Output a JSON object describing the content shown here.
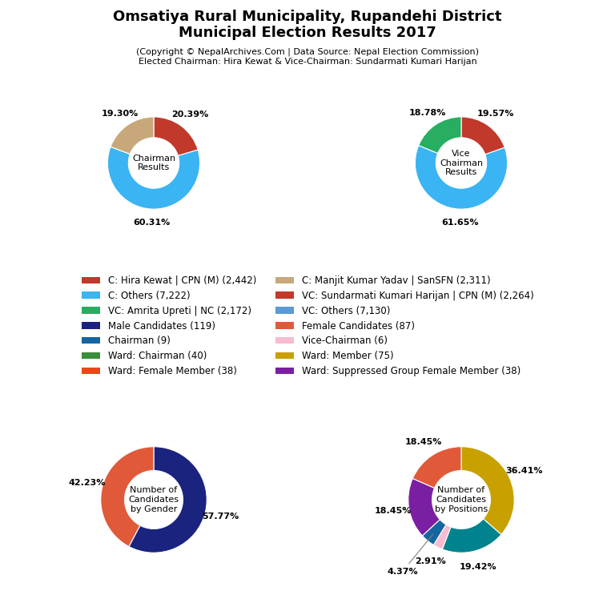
{
  "title": "Omsatiya Rural Municipality, Rupandehi District\nMunicipal Election Results 2017",
  "subtitle": "(Copyright © NepalArchives.Com | Data Source: Nepal Election Commission)\nElected Chairman: Hira Kewat & Vice-Chairman: Sundarmati Kumari Harijan",
  "chart_data": [
    {
      "type": "pie",
      "title": "Chairman\nResults",
      "values": [
        20.39,
        60.31,
        19.3
      ],
      "colors": [
        "#c0392b",
        "#3ab4f2",
        "#c8a87a"
      ],
      "value_labels": [
        "20.39%",
        "60.31%",
        "19.30%"
      ],
      "data_labels": true
    },
    {
      "type": "pie",
      "title": "Vice\nChairman\nResults",
      "values": [
        19.57,
        61.65,
        18.78
      ],
      "colors": [
        "#c0392b",
        "#3ab4f2",
        "#27ae60"
      ],
      "value_labels": [
        "19.57%",
        "61.65%",
        "18.78%"
      ],
      "data_labels": true
    },
    {
      "type": "pie",
      "title": "Number of\nCandidates\nby Gender",
      "values": [
        57.77,
        42.23
      ],
      "colors": [
        "#1a237e",
        "#e05a3a"
      ],
      "value_labels": [
        "57.77%",
        "42.23%"
      ],
      "data_labels": true
    },
    {
      "type": "pie",
      "title": "Number of\nCandidates\nby Positions",
      "values": [
        36.41,
        19.42,
        2.91,
        4.37,
        18.45,
        18.45
      ],
      "colors": [
        "#c8a000",
        "#00838f",
        "#f8bbd0",
        "#1565a0",
        "#7b1fa2",
        "#e05a3a"
      ],
      "value_labels": [
        "36.41%",
        "19.42%",
        "2.91%",
        "4.37%",
        "18.45%",
        "18.45%"
      ],
      "data_labels": true
    }
  ],
  "legend_items": [
    {
      "name": "C: Hira Kewat | CPN (M) (2,442)",
      "color": "#c0392b"
    },
    {
      "name": "C: Others (7,222)",
      "color": "#3ab4f2"
    },
    {
      "name": "VC: Amrita Upreti | NC (2,172)",
      "color": "#27ae60"
    },
    {
      "name": "Male Candidates (119)",
      "color": "#1a237e"
    },
    {
      "name": "Chairman (9)",
      "color": "#1565a0"
    },
    {
      "name": "Ward: Chairman (40)",
      "color": "#388e3c"
    },
    {
      "name": "Ward: Female Member (38)",
      "color": "#e64a19"
    },
    {
      "name": "C: Manjit Kumar Yadav | SanSFN (2,311)",
      "color": "#c8a87a"
    },
    {
      "name": "VC: Sundarmati Kumari Harijan | CPN (M) (2,264)",
      "color": "#c0392b"
    },
    {
      "name": "VC: Others (7,130)",
      "color": "#5b9bd5"
    },
    {
      "name": "Female Candidates (87)",
      "color": "#e05a3a"
    },
    {
      "name": "Vice-Chairman (6)",
      "color": "#f8bbd0"
    },
    {
      "name": "Ward: Member (75)",
      "color": "#c8a000"
    },
    {
      "name": "Ward: Suppressed Group Female Member (38)",
      "color": "#7b1fa2"
    }
  ]
}
